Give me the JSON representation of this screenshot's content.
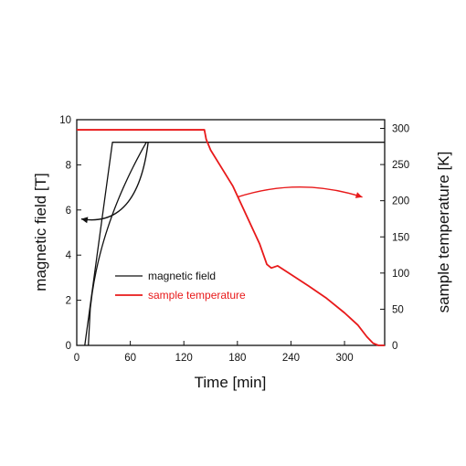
{
  "chart_data": {
    "type": "line",
    "xlabel": "Time [min]",
    "ylabel_left": "magnetic field [T]",
    "ylabel_right": "sample temperature [K]",
    "xlim": [
      0,
      345
    ],
    "ylim_left": [
      0,
      10
    ],
    "ylim_right": [
      0,
      312
    ],
    "x_ticks": [
      0,
      60,
      120,
      180,
      240,
      300
    ],
    "y_ticks_left": [
      0,
      2,
      4,
      6,
      8,
      10
    ],
    "y_ticks_right": [
      0,
      50,
      100,
      150,
      200,
      250,
      300
    ],
    "grid": false,
    "legend_position": "center-left",
    "series": [
      {
        "name": "magnetic field",
        "axis": "left",
        "color": "#111111",
        "x": [
          9,
          40,
          345
        ],
        "y": [
          0,
          9,
          9
        ]
      },
      {
        "name": "magnetic field",
        "axis": "left",
        "color": "#111111",
        "x": [
          13,
          78
        ],
        "y": [
          0,
          9
        ]
      },
      {
        "name": "sample temperature",
        "axis": "right",
        "color": "#e8191a",
        "x": [
          0,
          143,
          145,
          150,
          160,
          175,
          190,
          205,
          213,
          218,
          225,
          240,
          260,
          280,
          300,
          315,
          325,
          332,
          338,
          345
        ],
        "y": [
          298,
          298,
          285,
          270,
          250,
          220,
          180,
          140,
          112,
          107,
          110,
          98,
          82,
          65,
          45,
          28,
          12,
          3,
          0,
          0
        ]
      }
    ],
    "annotations": [
      {
        "type": "curved-arrow",
        "from": [
          80,
          9
        ],
        "to": [
          5,
          5.6
        ],
        "axis": "left",
        "color": "#111111"
      },
      {
        "type": "curved-arrow",
        "from": [
          180,
          205
        ],
        "to": [
          320,
          205
        ],
        "axis": "right",
        "color": "#e8191a"
      }
    ]
  }
}
